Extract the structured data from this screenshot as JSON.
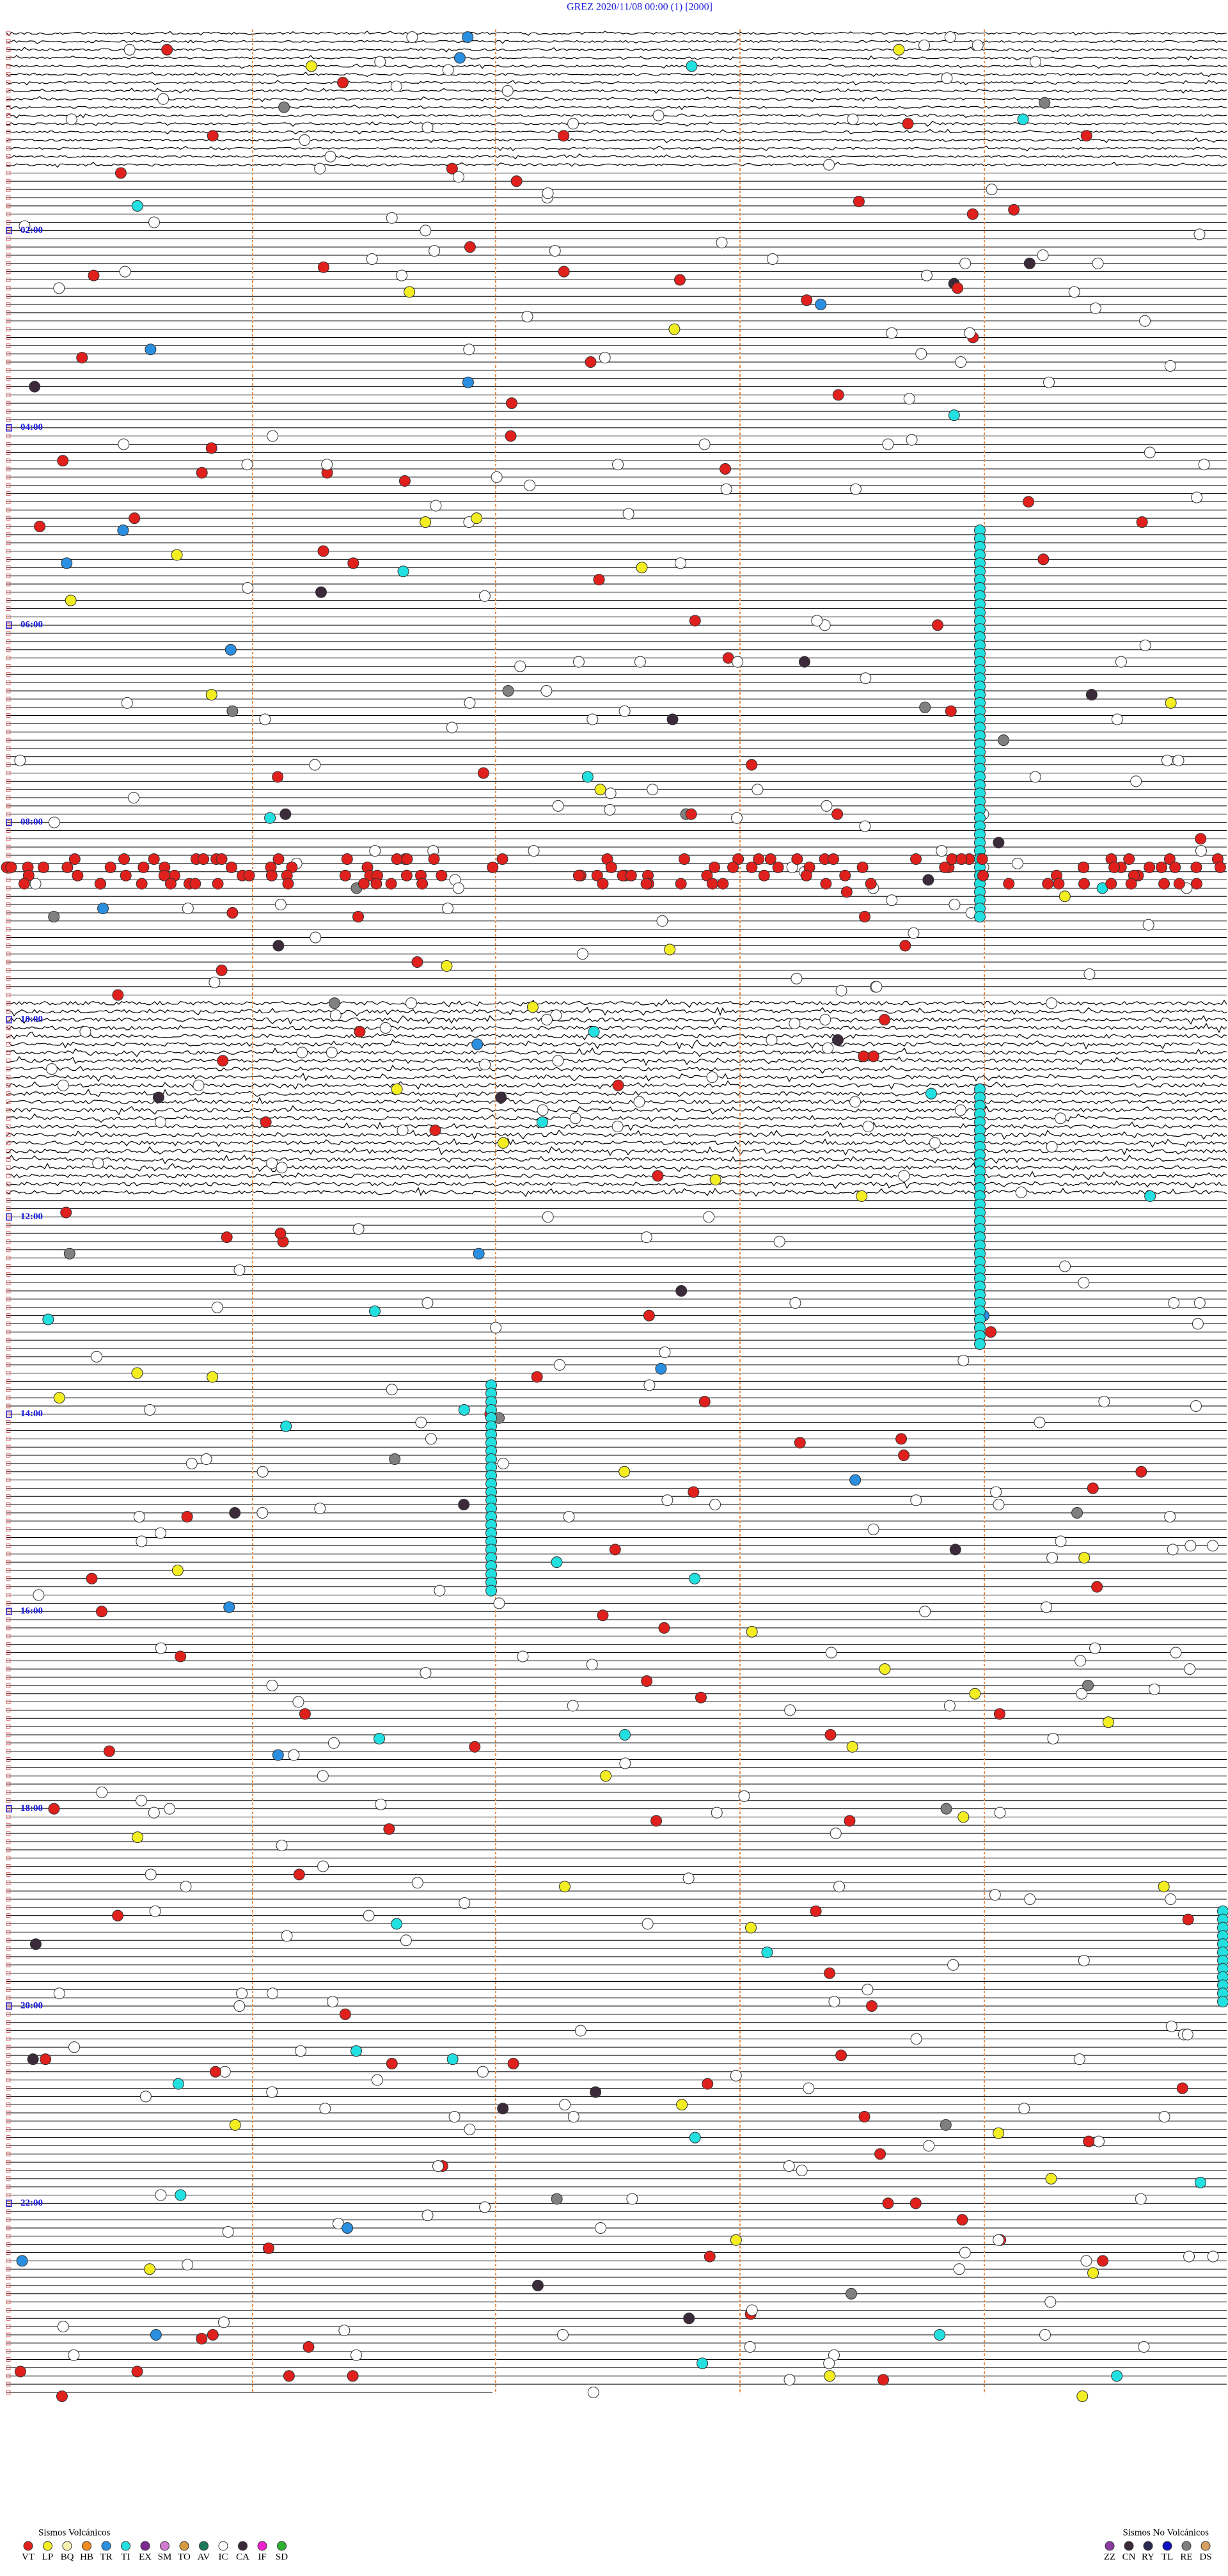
{
  "header": {
    "title": "GREZ     2020/11/08 00:00     (1)     [2000]"
  },
  "hour_labels": [
    "02:00",
    "04:00",
    "06:00",
    "08:00",
    "10:00",
    "12:00",
    "14:00",
    "16:00",
    "18:00",
    "20:00",
    "22:00"
  ],
  "legend_volcanic": {
    "title": "Sismos Volcánicos",
    "items": [
      {
        "label": "VT",
        "color": "#e0201c"
      },
      {
        "label": "LP",
        "color": "#f2ee22"
      },
      {
        "label": "BQ",
        "color": "#f6f2b0"
      },
      {
        "label": "HB",
        "color": "#f08a20"
      },
      {
        "label": "TR",
        "color": "#2a8fe0"
      },
      {
        "label": "TI",
        "color": "#22e0e0"
      },
      {
        "label": "EX",
        "color": "#7a2a90"
      },
      {
        "label": "SM",
        "color": "#d07ad0"
      },
      {
        "label": "TO",
        "color": "#d89a40"
      },
      {
        "label": "AV",
        "color": "#1a7a5a"
      },
      {
        "label": "IC",
        "color": "#ffffff"
      },
      {
        "label": "CA",
        "color": "#3a2a3a"
      },
      {
        "label": "IF",
        "color": "#f020d0"
      },
      {
        "label": "SD",
        "color": "#30b030"
      }
    ]
  },
  "legend_nonvolcanic": {
    "title": "Sismos No Volcánicos",
    "items": [
      {
        "label": "ZZ",
        "color": "#8a3aa0"
      },
      {
        "label": "CN",
        "color": "#3a2a3a"
      },
      {
        "label": "RY",
        "color": "#2a2a50"
      },
      {
        "label": "TL",
        "color": "#1010c0"
      },
      {
        "label": "RE",
        "color": "#808080"
      },
      {
        "label": "DS",
        "color": "#d8a060"
      }
    ]
  }
}
